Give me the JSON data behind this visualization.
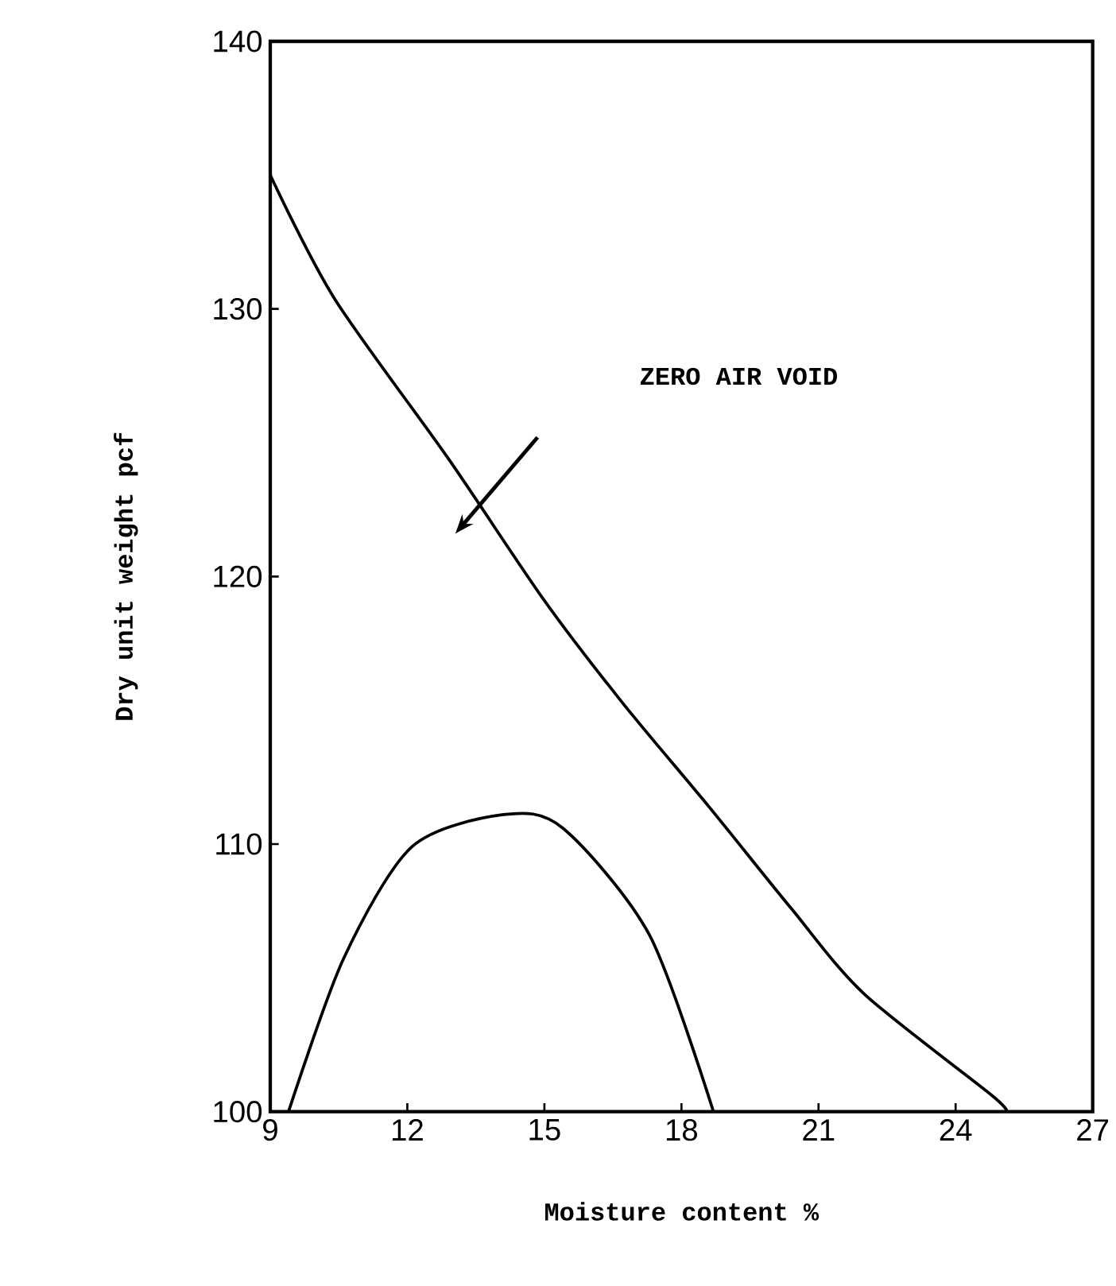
{
  "chart_data": {
    "type": "line",
    "xlabel": "Moisture content %",
    "ylabel": "Dry unit weight  pcf",
    "xlim": [
      9,
      27
    ],
    "ylim": [
      100,
      140
    ],
    "xticks": [
      9,
      12,
      15,
      18,
      21,
      24,
      27
    ],
    "yticks": [
      100,
      110,
      120,
      130,
      140
    ],
    "marker": "none",
    "line_style": "solid",
    "annotations": [
      "ZERO AIR VOID"
    ],
    "series": [
      {
        "color": "#000000",
        "x": [
          9,
          10.4,
          12.9,
          15.0,
          16.7,
          18.6,
          20.4,
          22.0,
          24.8,
          25.1
        ],
        "values": [
          135,
          130.4,
          124.4,
          119.1,
          115.3,
          111.4,
          107.6,
          104.4,
          100.6,
          100
        ]
      },
      {
        "color": "#000000",
        "x": [
          9.4,
          10.6,
          12.1,
          14.1,
          15.4,
          17.3,
          18.7
        ],
        "values": [
          100,
          105.7,
          109.9,
          111.1,
          110.6,
          106.6,
          100
        ]
      }
    ]
  }
}
